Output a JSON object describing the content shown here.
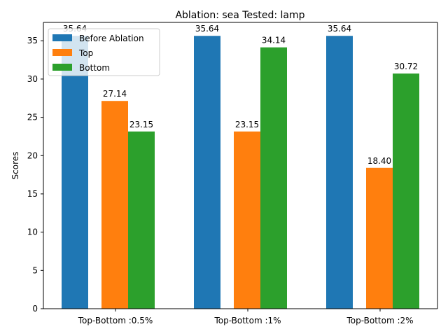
{
  "chart_data": {
    "type": "bar",
    "title": "Ablation: sea Tested: lamp",
    "xlabel": "",
    "ylabel": "Scores",
    "ylim": [
      0,
      37.4
    ],
    "yticks": [
      0,
      5,
      10,
      15,
      20,
      25,
      30,
      35
    ],
    "categories": [
      "Top-Bottom :0.5%",
      "Top-Bottom :1%",
      "Top-Bottom :2%"
    ],
    "series": [
      {
        "name": "Before Ablation",
        "color": "#1f77b4",
        "values": [
          35.64,
          35.64,
          35.64
        ]
      },
      {
        "name": "Top",
        "color": "#ff7f0e",
        "values": [
          27.14,
          23.15,
          18.4
        ]
      },
      {
        "name": "Bottom",
        "color": "#2ca02c",
        "values": [
          23.15,
          34.14,
          30.72
        ]
      }
    ],
    "data_labels": [
      [
        "35.64",
        "35.64",
        "35.64"
      ],
      [
        "27.14",
        "23.15",
        "18.40"
      ],
      [
        "23.15",
        "34.14",
        "30.72"
      ]
    ],
    "legend": {
      "placement": "top-left"
    },
    "grid": false
  }
}
